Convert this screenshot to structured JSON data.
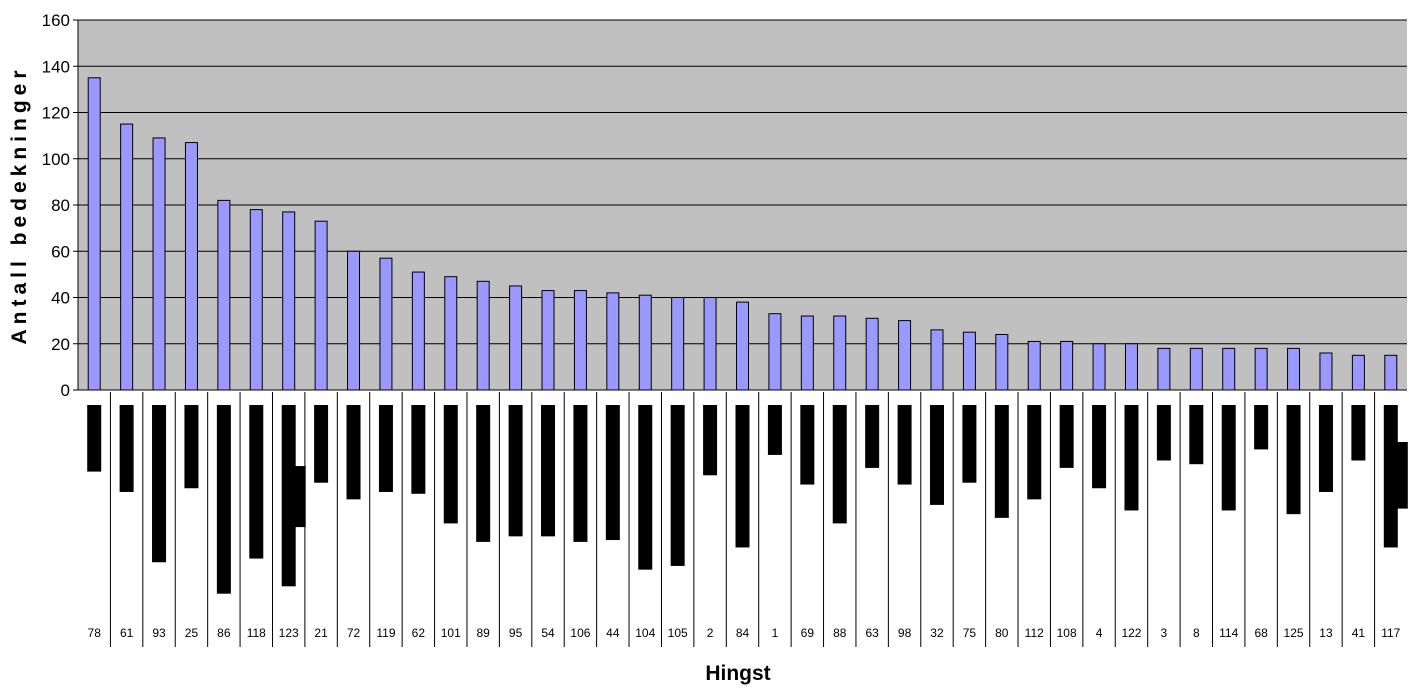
{
  "chart_data": {
    "type": "bar",
    "title": "",
    "xlabel": "Hingst",
    "ylabel": "Antall bedekninger",
    "ylim": [
      0,
      160
    ],
    "yticks": [
      0,
      20,
      40,
      60,
      80,
      100,
      120,
      140,
      160
    ],
    "grid": true,
    "legend": "none",
    "colors": {
      "plot_bg": "#c0c0c0",
      "bar_fill": "#9999ff",
      "bar_stroke": "#000000",
      "lower_bar": "#000000",
      "grid": "#000000"
    },
    "categories": [
      "78",
      "61",
      "93",
      "25",
      "86",
      "118",
      "123",
      "21",
      "72",
      "119",
      "62",
      "101",
      "89",
      "95",
      "54",
      "106",
      "44",
      "104",
      "105",
      "2",
      "84",
      "1",
      "69",
      "88",
      "63",
      "98",
      "32",
      "75",
      "80",
      "112",
      "108",
      "4",
      "122",
      "3",
      "8",
      "114",
      "68",
      "125",
      "13",
      "41",
      "117"
    ],
    "series": [
      {
        "values": [
          135,
          115,
          109,
          107,
          82,
          78,
          77,
          73,
          60,
          57,
          51,
          49,
          47,
          45,
          43,
          43,
          42,
          41,
          40,
          40,
          38,
          33,
          32,
          32,
          31,
          30,
          26,
          25,
          24,
          21,
          21,
          20,
          20,
          18,
          18,
          18,
          18,
          18,
          16,
          15,
          15
        ]
      }
    ],
    "lower_panel": {
      "unlabeled": true,
      "scale_max": 100,
      "bars": [
        [
          {
            "v": 36
          }
        ],
        [
          {
            "v": 47
          }
        ],
        [
          {
            "v": 85
          }
        ],
        [
          {
            "v": 45
          }
        ],
        [
          {
            "v": 102
          }
        ],
        [
          {
            "v": 83
          }
        ],
        [
          {
            "v": 98
          },
          {
            "v": 33,
            "o": 33,
            "side": "right"
          }
        ],
        [
          {
            "v": 42
          }
        ],
        [
          {
            "v": 51
          }
        ],
        [
          {
            "v": 47
          }
        ],
        [
          {
            "v": 48
          }
        ],
        [
          {
            "v": 64
          }
        ],
        [
          {
            "v": 74
          }
        ],
        [
          {
            "v": 71
          }
        ],
        [
          {
            "v": 71
          }
        ],
        [
          {
            "v": 74
          }
        ],
        [
          {
            "v": 73
          }
        ],
        [
          {
            "v": 89
          }
        ],
        [
          {
            "v": 87
          }
        ],
        [
          {
            "v": 38
          }
        ],
        [
          {
            "v": 77
          }
        ],
        [
          {
            "v": 27
          }
        ],
        [
          {
            "v": 43
          }
        ],
        [
          {
            "v": 64
          }
        ],
        [
          {
            "v": 34
          }
        ],
        [
          {
            "v": 43
          }
        ],
        [
          {
            "v": 54
          }
        ],
        [
          {
            "v": 42
          }
        ],
        [
          {
            "v": 61
          }
        ],
        [
          {
            "v": 51
          }
        ],
        [
          {
            "v": 34
          }
        ],
        [
          {
            "v": 45
          }
        ],
        [
          {
            "v": 57
          }
        ],
        [
          {
            "v": 30
          }
        ],
        [
          {
            "v": 32
          }
        ],
        [
          {
            "v": 57
          }
        ],
        [
          {
            "v": 24
          }
        ],
        [
          {
            "v": 59
          }
        ],
        [
          {
            "v": 47
          }
        ],
        [
          {
            "v": 30
          }
        ],
        [
          {
            "v": 77
          },
          {
            "v": 36,
            "o": 20,
            "side": "right"
          }
        ]
      ]
    }
  }
}
